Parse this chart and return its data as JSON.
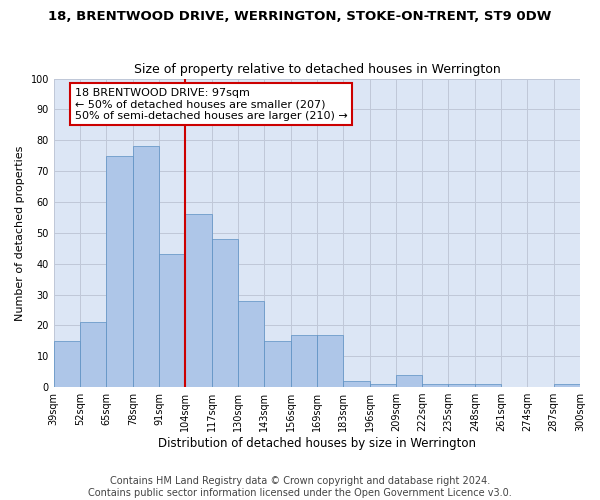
{
  "title": "18, BRENTWOOD DRIVE, WERRINGTON, STOKE-ON-TRENT, ST9 0DW",
  "subtitle": "Size of property relative to detached houses in Werrington",
  "xlabel": "Distribution of detached houses by size in Werrington",
  "ylabel": "Number of detached properties",
  "bar_values": [
    15,
    21,
    75,
    78,
    43,
    56,
    48,
    28,
    15,
    17,
    17,
    2,
    1,
    4,
    1,
    1,
    1,
    0,
    0,
    1
  ],
  "categories": [
    "39sqm",
    "52sqm",
    "65sqm",
    "78sqm",
    "91sqm",
    "104sqm",
    "117sqm",
    "130sqm",
    "143sqm",
    "156sqm",
    "169sqm",
    "183sqm",
    "196sqm",
    "209sqm",
    "222sqm",
    "235sqm",
    "248sqm",
    "261sqm",
    "274sqm",
    "287sqm",
    "300sqm"
  ],
  "bar_color": "#aec6e8",
  "bar_edge_color": "#5a8fc2",
  "vline_x": 4.5,
  "vline_color": "#cc0000",
  "annotation_line1": "18 BRENTWOOD DRIVE: 97sqm",
  "annotation_line2": "← 50% of detached houses are smaller (207)",
  "annotation_line3": "50% of semi-detached houses are larger (210) →",
  "annotation_box_color": "white",
  "annotation_box_edge_color": "#cc0000",
  "ylim": [
    0,
    100
  ],
  "yticks": [
    0,
    10,
    20,
    30,
    40,
    50,
    60,
    70,
    80,
    90,
    100
  ],
  "grid_color": "#c0c8d8",
  "bg_color": "#dce6f5",
  "footer_text": "Contains HM Land Registry data © Crown copyright and database right 2024.\nContains public sector information licensed under the Open Government Licence v3.0.",
  "title_fontsize": 9.5,
  "subtitle_fontsize": 9,
  "xlabel_fontsize": 8.5,
  "ylabel_fontsize": 8,
  "tick_fontsize": 7,
  "annotation_fontsize": 8,
  "footer_fontsize": 7
}
